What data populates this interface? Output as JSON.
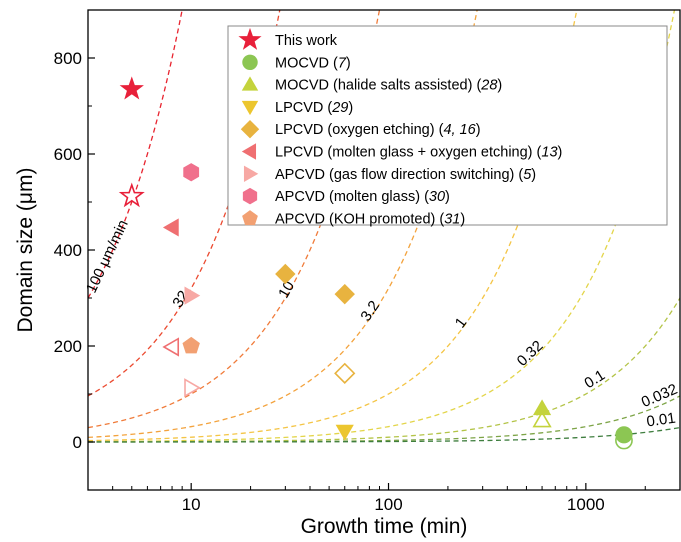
{
  "chart_data": {
    "type": "scatter",
    "xlabel": "Growth time (min)",
    "ylabel": "Domain size (μm)",
    "xscale": "log",
    "xlim": [
      3,
      3000
    ],
    "ylim": [
      -100,
      900
    ],
    "xticks": [
      {
        "v": 10,
        "label": "10"
      },
      {
        "v": 100,
        "label": "100"
      },
      {
        "v": 1000,
        "label": "1000"
      }
    ],
    "yticks": [
      {
        "v": 0,
        "label": "0"
      },
      {
        "v": 200,
        "label": "200"
      },
      {
        "v": 400,
        "label": "400"
      },
      {
        "v": 600,
        "label": "600"
      },
      {
        "v": 800,
        "label": "800"
      }
    ],
    "grid": false,
    "legend_position": "top-right",
    "rate_lines": [
      {
        "rate": 100,
        "label": "100 μm/min",
        "color": "#e8242f"
      },
      {
        "rate": 32,
        "label": "32",
        "color": "#eb4a30"
      },
      {
        "rate": 10,
        "label": "10",
        "color": "#f07b3a"
      },
      {
        "rate": 3.2,
        "label": "3.2",
        "color": "#f3a33e"
      },
      {
        "rate": 1,
        "label": "1",
        "color": "#f4c546"
      },
      {
        "rate": 0.32,
        "label": "0.32",
        "color": "#e3d54a"
      },
      {
        "rate": 0.1,
        "label": "0.1",
        "color": "#b4c448"
      },
      {
        "rate": 0.032,
        "label": "0.032",
        "color": "#7da447"
      },
      {
        "rate": 0.01,
        "label": "0.01",
        "color": "#3f7e3f"
      }
    ],
    "series": [
      {
        "name": "This work",
        "ref": "",
        "marker": "star",
        "color": "#e8203a",
        "filled": [
          [
            5,
            735
          ]
        ],
        "open": [
          [
            5,
            512
          ]
        ]
      },
      {
        "name": "MOCVD",
        "ref": "7",
        "marker": "circle",
        "color": "#8cc653",
        "filled": [
          [
            1560,
            15
          ]
        ],
        "open": [
          [
            1560,
            3
          ]
        ]
      },
      {
        "name": "MOCVD (halide salts assisted)",
        "ref": "28",
        "marker": "triangle-up",
        "color": "#c4d33c",
        "filled": [
          [
            600,
            70
          ]
        ],
        "open": [
          [
            600,
            45
          ]
        ]
      },
      {
        "name": "LPCVD",
        "ref": "29",
        "marker": "triangle-down",
        "color": "#ecc62f",
        "filled": [
          [
            60,
            22
          ]
        ],
        "open": []
      },
      {
        "name": "LPCVD (oxygen etching)",
        "ref": "4, 16",
        "marker": "diamond",
        "color": "#e8b33f",
        "filled": [
          [
            30,
            350
          ],
          [
            60,
            308
          ]
        ],
        "open": [
          [
            60,
            143
          ]
        ]
      },
      {
        "name": "LPCVD (molten glass + oxygen etching)",
        "ref": "13",
        "marker": "triangle-left",
        "color": "#ef6f71",
        "filled": [
          [
            8,
            447
          ]
        ],
        "open": [
          [
            8,
            198
          ]
        ]
      },
      {
        "name": "APCVD (gas flow direction switching)",
        "ref": "5",
        "marker": "triangle-right",
        "color": "#f7a8a4",
        "filled": [
          [
            10,
            305
          ]
        ],
        "open": [
          [
            10,
            113
          ]
        ]
      },
      {
        "name": "APCVD (molten glass)",
        "ref": "30",
        "marker": "hexagon",
        "color": "#f0708c",
        "filled": [
          [
            10,
            562
          ]
        ],
        "open": []
      },
      {
        "name": "APCVD (KOH promoted)",
        "ref": "31",
        "marker": "pentagon",
        "color": "#f2a072",
        "filled": [
          [
            10,
            200
          ]
        ],
        "open": []
      }
    ]
  }
}
